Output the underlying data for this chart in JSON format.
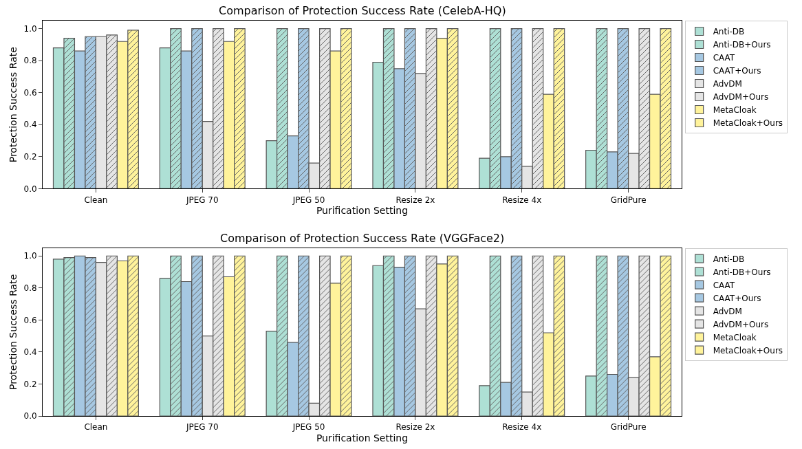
{
  "chart_data": [
    {
      "type": "bar",
      "title": "Comparison of Protection Success Rate (CelebA-HQ)",
      "xlabel": "Purification Setting",
      "ylabel": "Protection Success Rate",
      "categories": [
        "Clean",
        "JPEG 70",
        "JPEG 50",
        "Resize 2x",
        "Resize 4x",
        "GridPure"
      ],
      "ylim": [
        0,
        1.05
      ],
      "yticks": [
        {
          "value": 0,
          "label": "0.0"
        },
        {
          "value": 0.2,
          "label": "0.2"
        },
        {
          "value": 0.4,
          "label": "0.4"
        },
        {
          "value": 0.6,
          "label": "0.6"
        },
        {
          "value": 0.8,
          "label": "0.8"
        },
        {
          "value": 1,
          "label": "1.0"
        }
      ],
      "legend": "right",
      "grid": false,
      "series": [
        {
          "name": "Anti-DB",
          "color": "#aee0d5",
          "values": [
            0.88,
            0.88,
            0.3,
            0.79,
            0.19,
            0.24
          ]
        },
        {
          "name": "Anti-DB+Ours",
          "color": "#aee0d5",
          "values": [
            0.94,
            1.0,
            1.0,
            1.0,
            1.0,
            1.0
          ]
        },
        {
          "name": "CAAT",
          "color": "#a6c8e2",
          "values": [
            0.86,
            0.86,
            0.33,
            0.75,
            0.2,
            0.23
          ]
        },
        {
          "name": "CAAT+Ours",
          "color": "#a6c8e2",
          "values": [
            0.95,
            1.0,
            1.0,
            1.0,
            1.0,
            1.0
          ]
        },
        {
          "name": "AdvDM",
          "color": "#e5e5e5",
          "values": [
            0.95,
            0.42,
            0.16,
            0.72,
            0.14,
            0.22
          ]
        },
        {
          "name": "AdvDM+Ours",
          "color": "#e5e5e5",
          "values": [
            0.96,
            1.0,
            1.0,
            1.0,
            1.0,
            1.0
          ]
        },
        {
          "name": "MetaCloak",
          "color": "#fff39b",
          "values": [
            0.92,
            0.92,
            0.86,
            0.94,
            0.59,
            0.59
          ]
        },
        {
          "name": "MetaCloak+Ours",
          "color": "#fff39b",
          "values": [
            0.99,
            1.0,
            1.0,
            1.0,
            1.0,
            1.0
          ]
        }
      ]
    },
    {
      "type": "bar",
      "title": "Comparison of Protection Success Rate (VGGFace2)",
      "xlabel": "Purification Setting",
      "ylabel": "Protection Success Rate",
      "categories": [
        "Clean",
        "JPEG 70",
        "JPEG 50",
        "Resize 2x",
        "Resize 4x",
        "GridPure"
      ],
      "ylim": [
        0,
        1.05
      ],
      "yticks": [
        {
          "value": 0,
          "label": "0.0"
        },
        {
          "value": 0.2,
          "label": "0.2"
        },
        {
          "value": 0.4,
          "label": "0.4"
        },
        {
          "value": 0.6,
          "label": "0.6"
        },
        {
          "value": 0.8,
          "label": "0.8"
        },
        {
          "value": 1,
          "label": "1.0"
        }
      ],
      "legend": "right",
      "grid": false,
      "series": [
        {
          "name": "Anti-DB",
          "color": "#aee0d5",
          "values": [
            0.98,
            0.86,
            0.53,
            0.94,
            0.19,
            0.25
          ]
        },
        {
          "name": "Anti-DB+Ours",
          "color": "#aee0d5",
          "values": [
            0.99,
            1.0,
            1.0,
            1.0,
            1.0,
            1.0
          ]
        },
        {
          "name": "CAAT",
          "color": "#a6c8e2",
          "values": [
            1.0,
            0.84,
            0.46,
            0.93,
            0.21,
            0.26
          ]
        },
        {
          "name": "CAAT+Ours",
          "color": "#a6c8e2",
          "values": [
            0.99,
            1.0,
            1.0,
            1.0,
            1.0,
            1.0
          ]
        },
        {
          "name": "AdvDM",
          "color": "#e5e5e5",
          "values": [
            0.96,
            0.5,
            0.08,
            0.67,
            0.15,
            0.24
          ]
        },
        {
          "name": "AdvDM+Ours",
          "color": "#e5e5e5",
          "values": [
            1.0,
            1.0,
            1.0,
            1.0,
            1.0,
            1.0
          ]
        },
        {
          "name": "MetaCloak",
          "color": "#fff39b",
          "values": [
            0.97,
            0.87,
            0.83,
            0.95,
            0.52,
            0.37
          ]
        },
        {
          "name": "MetaCloak+Ours",
          "color": "#fff39b",
          "values": [
            1.0,
            1.0,
            1.0,
            1.0,
            1.0,
            1.0
          ]
        }
      ]
    }
  ]
}
